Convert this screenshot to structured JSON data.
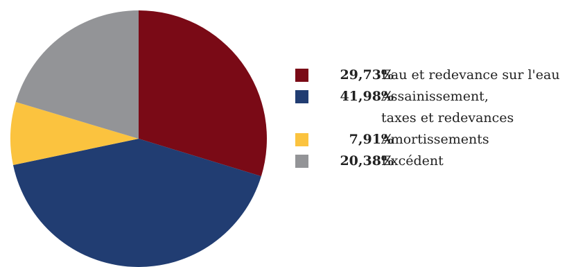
{
  "chart_data": {
    "type": "pie",
    "start_angle_deg": 0,
    "direction": "clockwise",
    "legend_position": "right",
    "slices": [
      {
        "value": 29.73,
        "value_label": "29,73%",
        "label": "Eau et redevance sur l'eau",
        "color": "#7a0a16"
      },
      {
        "value": 41.98,
        "value_label": "41,98%",
        "label": "Assainissement,\ntaxes et redevances",
        "color": "#213d72"
      },
      {
        "value": 7.91,
        "value_label": "7,91%",
        "label": "Amortissements",
        "color": "#fbc33f"
      },
      {
        "value": 20.38,
        "value_label": "20,38%",
        "label": "Excédent",
        "color": "#939497"
      }
    ]
  }
}
